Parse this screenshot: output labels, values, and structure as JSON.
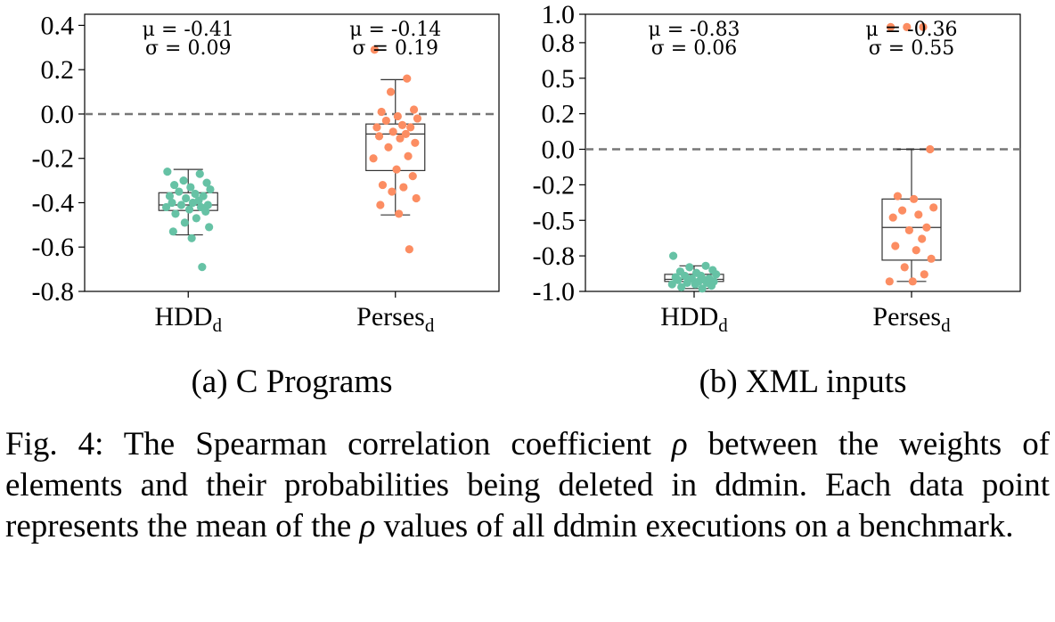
{
  "chart_data": [
    {
      "type": "box",
      "title": "(a) C Programs",
      "xlabel": "",
      "ylabel": "",
      "ylim": [
        -0.8,
        0.45
      ],
      "yticks": [
        "0.4",
        "0.2",
        "0.0",
        "-0.2",
        "-0.4",
        "-0.6",
        "-0.8"
      ],
      "reference_line": {
        "y": 0.0,
        "style": "dashed"
      },
      "categories": [
        "HDD",
        "Perses"
      ],
      "category_subscript": "d",
      "series": [
        {
          "category": "HDD",
          "stat_mu": "μ = -0.41",
          "stat_sigma": "σ = 0.09",
          "color": "#66c2a5",
          "box": {
            "whisker_low": -0.545,
            "q1": -0.435,
            "median": -0.41,
            "q3": -0.355,
            "whisker_high": -0.25
          },
          "points": [
            -0.26,
            -0.27,
            -0.3,
            -0.31,
            -0.32,
            -0.33,
            -0.34,
            -0.35,
            -0.36,
            -0.37,
            -0.37,
            -0.38,
            -0.39,
            -0.4,
            -0.4,
            -0.41,
            -0.41,
            -0.42,
            -0.42,
            -0.43,
            -0.44,
            -0.45,
            -0.47,
            -0.49,
            -0.51,
            -0.53,
            -0.56,
            -0.69
          ]
        },
        {
          "category": "Perses",
          "stat_mu": "μ = -0.14",
          "stat_sigma": "σ = 0.19",
          "color": "#fc8d62",
          "box": {
            "whisker_low": -0.455,
            "q1": -0.255,
            "median": -0.09,
            "q3": -0.045,
            "whisker_high": 0.155
          },
          "points": [
            0.29,
            0.16,
            0.1,
            0.02,
            0.01,
            -0.01,
            -0.02,
            -0.03,
            -0.05,
            -0.06,
            -0.06,
            -0.08,
            -0.09,
            -0.1,
            -0.11,
            -0.13,
            -0.15,
            -0.19,
            -0.2,
            -0.25,
            -0.28,
            -0.32,
            -0.33,
            -0.35,
            -0.38,
            -0.41,
            -0.45,
            -0.61
          ]
        }
      ]
    },
    {
      "type": "box",
      "title": "(b) XML inputs",
      "xlabel": "",
      "ylabel": "",
      "ylim": [
        -1.0,
        1.0
      ],
      "yticks": [
        "1.0",
        "0.8",
        "0.5",
        "0.2",
        "0.0",
        "-0.2",
        "-0.5",
        "-0.8",
        "-1.0"
      ],
      "ytick_values": [
        1.0,
        0.8,
        0.55,
        0.3,
        0.05,
        -0.2,
        -0.45,
        -0.7,
        -0.95
      ],
      "reference_line": {
        "y": 0.05,
        "style": "dashed"
      },
      "categories": [
        "HDD",
        "Perses"
      ],
      "category_subscript": "d",
      "series": [
        {
          "category": "HDD",
          "stat_mu": "μ = -0.83",
          "stat_sigma": "σ = 0.06",
          "color": "#66c2a5",
          "box": {
            "whisker_low": -0.93,
            "q1": -0.88,
            "median": -0.865,
            "q3": -0.83,
            "whisker_high": -0.77
          },
          "points": [
            -0.7,
            -0.77,
            -0.78,
            -0.8,
            -0.81,
            -0.82,
            -0.83,
            -0.84,
            -0.84,
            -0.85,
            -0.86,
            -0.86,
            -0.87,
            -0.87,
            -0.88,
            -0.88,
            -0.89,
            -0.89,
            -0.9,
            -0.9,
            -0.91,
            -0.92,
            -0.93
          ]
        },
        {
          "category": "Perses",
          "stat_mu": "μ = -0.36",
          "stat_sigma": "σ = 0.55",
          "color": "#fc8d62",
          "box": {
            "whisker_low": -0.88,
            "q1": -0.73,
            "median": -0.5,
            "q3": -0.3,
            "whisker_high": 0.05
          },
          "points": [
            0.91,
            0.91,
            0.91,
            0.05,
            -0.28,
            -0.3,
            -0.36,
            -0.38,
            -0.41,
            -0.43,
            -0.5,
            -0.52,
            -0.58,
            -0.63,
            -0.66,
            -0.72,
            -0.78,
            -0.83,
            -0.88,
            -0.88
          ]
        }
      ]
    }
  ],
  "caption": {
    "prefix": "Fig. 4: The Spearman correlation coefficient",
    "rho_1": "ρ",
    "middle": "between the weights of elements and their probabilities being deleted in ddmin. Each data point represents the mean of the",
    "rho_2": "ρ",
    "suffix": "values of all ddmin executions on a benchmark."
  }
}
